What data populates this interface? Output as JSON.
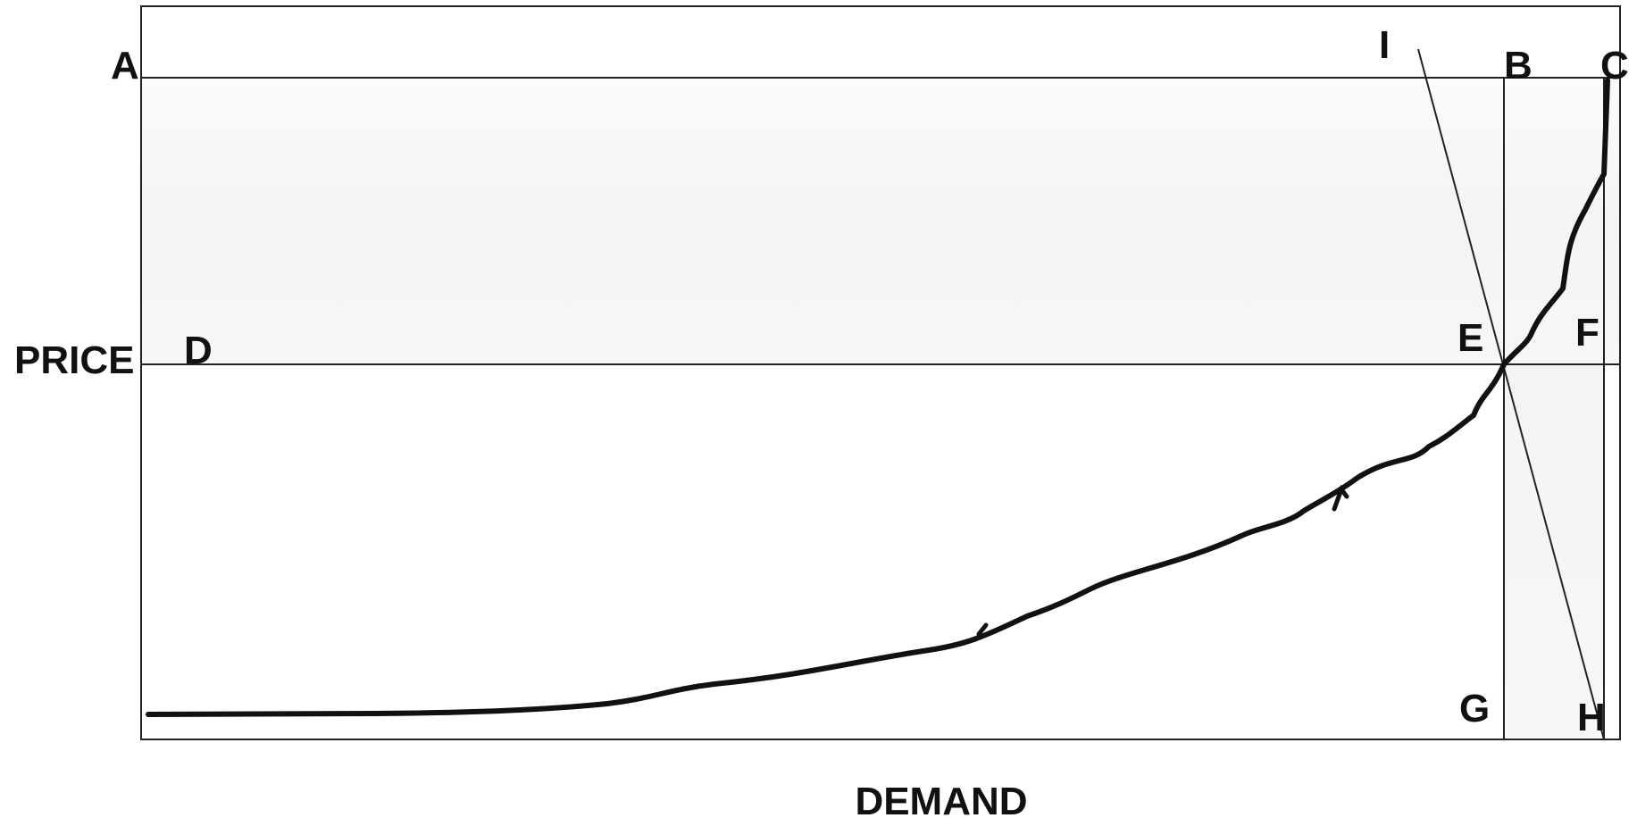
{
  "diagram": {
    "axis_labels": {
      "price": "PRICE",
      "demand": "DEMAND"
    },
    "point_labels": {
      "A": "A",
      "B": "B",
      "C": "C",
      "D": "D",
      "E": "E",
      "F": "F",
      "G": "G",
      "H": "H",
      "I": "I"
    }
  }
}
